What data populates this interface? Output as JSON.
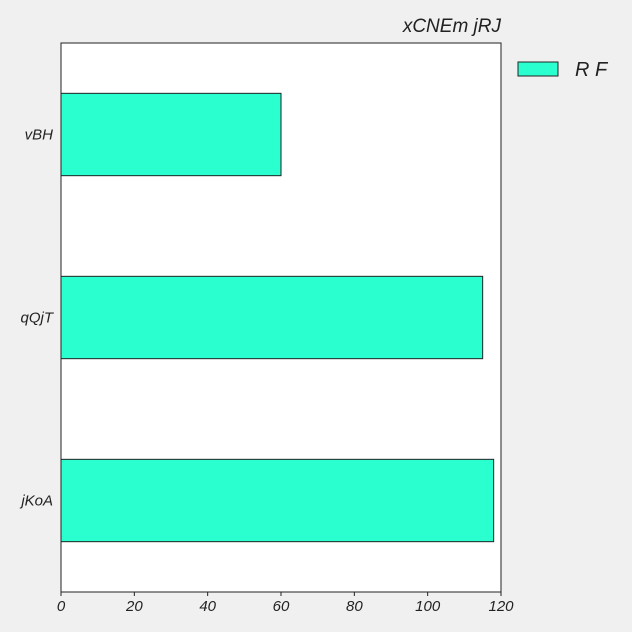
{
  "chart_data": {
    "type": "bar",
    "orientation": "horizontal",
    "title": "xCNEm jRJ",
    "categories": [
      "vBH",
      "qQjT",
      "jKoA"
    ],
    "series": [
      {
        "name": "R F",
        "values": [
          60,
          115,
          118
        ]
      }
    ],
    "xlim": [
      0,
      120
    ],
    "xticks": [
      "0",
      "20",
      "40",
      "60",
      "80",
      "100",
      "120"
    ],
    "grid": false,
    "legend": {
      "position": "outside-top-right"
    },
    "colors": {
      "bar": "#2affd0",
      "bar_edge": "#222222",
      "plot_bg": "#ffffff",
      "page_bg": "#f0f0f0"
    }
  }
}
